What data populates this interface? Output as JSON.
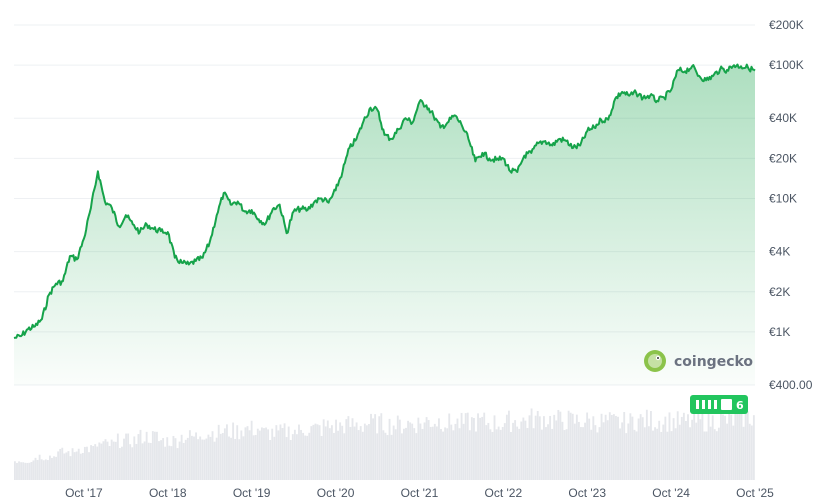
{
  "chart_data": {
    "type": "line",
    "scale": "log",
    "ylim": [
      400,
      200000
    ],
    "grid": true,
    "y_ticks": [
      {
        "value": 200000,
        "label": "€200K"
      },
      {
        "value": 100000,
        "label": "€100K"
      },
      {
        "value": 40000,
        "label": "€40K"
      },
      {
        "value": 20000,
        "label": "€20K"
      },
      {
        "value": 10000,
        "label": "€10K"
      },
      {
        "value": 4000,
        "label": "€4K"
      },
      {
        "value": 2000,
        "label": "€2K"
      },
      {
        "value": 1000,
        "label": "€1K"
      },
      {
        "value": 400,
        "label": "€400.00"
      }
    ],
    "x_ticks": [
      {
        "value": "2017-10",
        "label": "Oct '17"
      },
      {
        "value": "2018-10",
        "label": "Oct '18"
      },
      {
        "value": "2019-10",
        "label": "Oct '19"
      },
      {
        "value": "2020-10",
        "label": "Oct '20"
      },
      {
        "value": "2021-10",
        "label": "Oct '21"
      },
      {
        "value": "2022-10",
        "label": "Oct '22"
      },
      {
        "value": "2023-10",
        "label": "Oct '23"
      },
      {
        "value": "2024-10",
        "label": "Oct '24"
      },
      {
        "value": "2025-10",
        "label": "Oct '25"
      }
    ],
    "series": [
      {
        "color": "#16a34a",
        "points": [
          [
            "2016-12",
            900
          ],
          [
            "2017-01",
            930
          ],
          [
            "2017-02",
            1050
          ],
          [
            "2017-03",
            1100
          ],
          [
            "2017-04",
            1250
          ],
          [
            "2017-05",
            1900
          ],
          [
            "2017-06",
            2300
          ],
          [
            "2017-07",
            2400
          ],
          [
            "2017-08",
            3700
          ],
          [
            "2017-09",
            3500
          ],
          [
            "2017-10",
            5000
          ],
          [
            "2017-11",
            8500
          ],
          [
            "2017-12",
            16000
          ],
          [
            "2018-01",
            9500
          ],
          [
            "2018-02",
            8500
          ],
          [
            "2018-03",
            6200
          ],
          [
            "2018-04",
            7500
          ],
          [
            "2018-05",
            6400
          ],
          [
            "2018-06",
            5600
          ],
          [
            "2018-07",
            6400
          ],
          [
            "2018-08",
            5900
          ],
          [
            "2018-09",
            5700
          ],
          [
            "2018-10",
            5600
          ],
          [
            "2018-11",
            3600
          ],
          [
            "2018-12",
            3300
          ],
          [
            "2019-01",
            3200
          ],
          [
            "2019-02",
            3400
          ],
          [
            "2019-03",
            3600
          ],
          [
            "2019-04",
            4700
          ],
          [
            "2019-05",
            7500
          ],
          [
            "2019-06",
            11000
          ],
          [
            "2019-07",
            9000
          ],
          [
            "2019-08",
            9500
          ],
          [
            "2019-09",
            8000
          ],
          [
            "2019-10",
            8200
          ],
          [
            "2019-11",
            7000
          ],
          [
            "2019-12",
            6500
          ],
          [
            "2020-01",
            8300
          ],
          [
            "2020-02",
            9000
          ],
          [
            "2020-03",
            5500
          ],
          [
            "2020-04",
            8000
          ],
          [
            "2020-05",
            8400
          ],
          [
            "2020-06",
            8200
          ],
          [
            "2020-07",
            9500
          ],
          [
            "2020-08",
            10000
          ],
          [
            "2020-09",
            9300
          ],
          [
            "2020-10",
            11500
          ],
          [
            "2020-11",
            16000
          ],
          [
            "2020-12",
            24000
          ],
          [
            "2021-01",
            28000
          ],
          [
            "2021-02",
            38000
          ],
          [
            "2021-03",
            48000
          ],
          [
            "2021-04",
            46000
          ],
          [
            "2021-05",
            30000
          ],
          [
            "2021-06",
            28000
          ],
          [
            "2021-07",
            33000
          ],
          [
            "2021-08",
            40000
          ],
          [
            "2021-09",
            37000
          ],
          [
            "2021-10",
            53000
          ],
          [
            "2021-11",
            50000
          ],
          [
            "2021-12",
            42000
          ],
          [
            "2022-01",
            34000
          ],
          [
            "2022-02",
            37000
          ],
          [
            "2022-03",
            42000
          ],
          [
            "2022-04",
            36000
          ],
          [
            "2022-05",
            28000
          ],
          [
            "2022-06",
            19000
          ],
          [
            "2022-07",
            22000
          ],
          [
            "2022-08",
            20000
          ],
          [
            "2022-09",
            19500
          ],
          [
            "2022-10",
            20000
          ],
          [
            "2022-11",
            16000
          ],
          [
            "2022-12",
            15800
          ],
          [
            "2023-01",
            21000
          ],
          [
            "2023-02",
            22000
          ],
          [
            "2023-03",
            26000
          ],
          [
            "2023-04",
            27000
          ],
          [
            "2023-05",
            25000
          ],
          [
            "2023-06",
            28000
          ],
          [
            "2023-07",
            27000
          ],
          [
            "2023-08",
            24000
          ],
          [
            "2023-09",
            25000
          ],
          [
            "2023-10",
            32000
          ],
          [
            "2023-11",
            34000
          ],
          [
            "2023-12",
            39000
          ],
          [
            "2024-01",
            39000
          ],
          [
            "2024-02",
            56000
          ],
          [
            "2024-03",
            63000
          ],
          [
            "2024-04",
            59000
          ],
          [
            "2024-05",
            62000
          ],
          [
            "2024-06",
            57000
          ],
          [
            "2024-07",
            59000
          ],
          [
            "2024-08",
            54000
          ],
          [
            "2024-09",
            57000
          ],
          [
            "2024-10",
            65000
          ],
          [
            "2024-11",
            92000
          ],
          [
            "2024-12",
            90000
          ],
          [
            "2025-01",
            98000
          ],
          [
            "2025-02",
            83000
          ],
          [
            "2025-03",
            77000
          ],
          [
            "2025-04",
            83000
          ],
          [
            "2025-05",
            93000
          ],
          [
            "2025-06",
            92000
          ],
          [
            "2025-07",
            100000
          ],
          [
            "2025-08",
            98000
          ],
          [
            "2025-09",
            96000
          ],
          [
            "2025-10",
            91000
          ]
        ]
      }
    ],
    "volume": {
      "color": "#e5e7eb",
      "description_free_values_relative": [
        0.25,
        0.3,
        0.35,
        0.4,
        0.45,
        0.5,
        0.55,
        0.5,
        0.55,
        0.6,
        0.62,
        0.65,
        0.6,
        0.62,
        0.65,
        0.68,
        0.7,
        0.72,
        0.7,
        0.72,
        0.75,
        0.72,
        0.74,
        0.72,
        0.75,
        0.78,
        0.76,
        0.75,
        0.74,
        0.73,
        0.76,
        0.75,
        0.74,
        0.75,
        0.76,
        0.8
      ]
    }
  },
  "branding": {
    "logo_text": "coingecko"
  },
  "badge": {
    "text": "6"
  }
}
